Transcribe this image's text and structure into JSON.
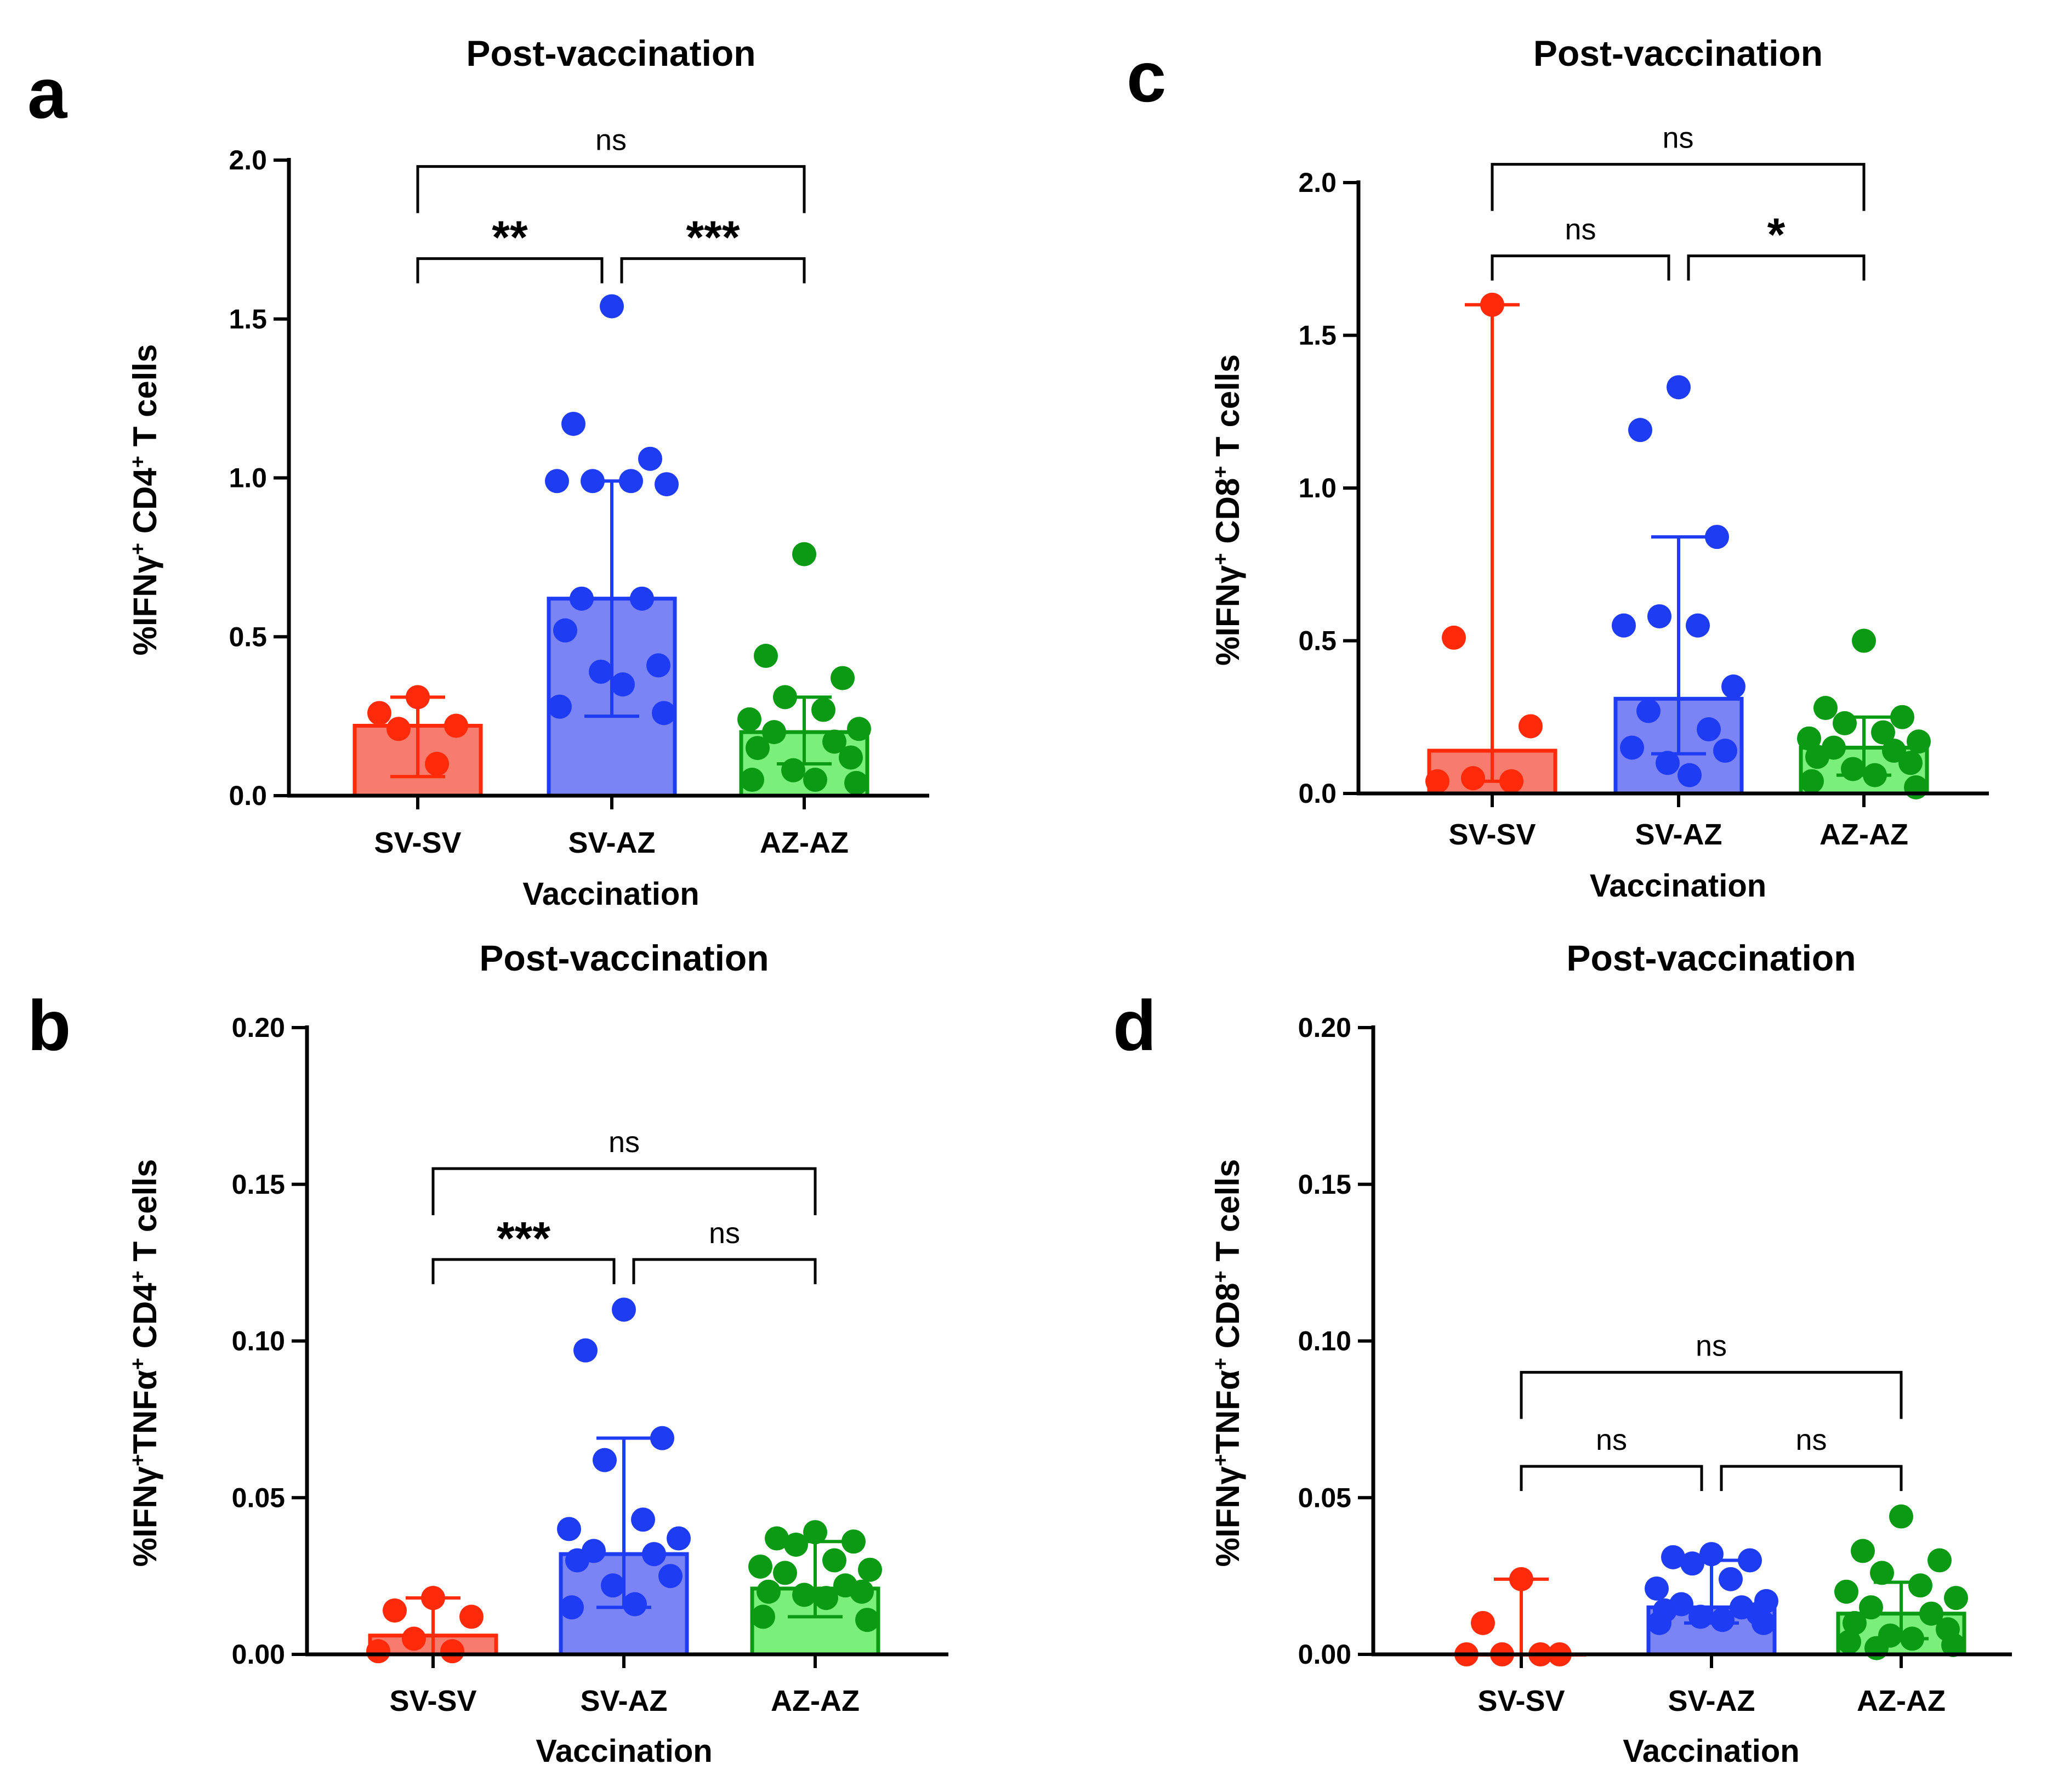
{
  "chart_data": [
    {
      "panel": "a",
      "type": "bar",
      "title": "Post-vaccination",
      "xlabel": "Vaccination",
      "ylabel_parts": [
        "%IFNγ",
        "+",
        " CD4",
        "+",
        " T cells"
      ],
      "ylim": [
        0,
        2.0
      ],
      "yticks": [
        0.0,
        0.5,
        1.0,
        1.5,
        2.0
      ],
      "ytick_labels": [
        "0.0",
        "0.5",
        "1.0",
        "1.5",
        "2.0"
      ],
      "categories": [
        "SV-SV",
        "SV-AZ",
        "AZ-AZ"
      ],
      "colors": [
        {
          "fill": "#f87c6d",
          "edge": "#ff2a0a",
          "dot": "#ff2a0a"
        },
        {
          "fill": "#7a84f5",
          "edge": "#1f3cf5",
          "dot": "#1f3cf5"
        },
        {
          "fill": "#7af07a",
          "edge": "#0a9a14",
          "dot": "#0a9a14"
        }
      ],
      "bars": [
        0.22,
        0.62,
        0.2
      ],
      "error_bars": [
        [
          0.06,
          0.31
        ],
        [
          0.25,
          0.99
        ],
        [
          0.1,
          0.31
        ]
      ],
      "points": [
        [
          0.31,
          0.26,
          0.22,
          0.21,
          0.1
        ],
        [
          1.54,
          1.17,
          1.06,
          0.99,
          0.99,
          0.99,
          0.98,
          0.62,
          0.62,
          0.52,
          0.41,
          0.39,
          0.35,
          0.28,
          0.26
        ],
        [
          0.76,
          0.44,
          0.37,
          0.31,
          0.27,
          0.24,
          0.21,
          0.2,
          0.17,
          0.15,
          0.12,
          0.08,
          0.05,
          0.05,
          0.04
        ]
      ],
      "comparisons": [
        {
          "from": 0,
          "to": 1,
          "label": "**",
          "level": 0.45,
          "y": 1.69
        },
        {
          "from": 1,
          "to": 2,
          "label": "***",
          "level": 0.45,
          "y": 1.69
        },
        {
          "from": 0,
          "to": 2,
          "label": "ns",
          "level": 0.9,
          "y": 1.98
        }
      ]
    },
    {
      "panel": "b",
      "type": "bar",
      "title": "Post-vaccination",
      "xlabel": "Vaccination",
      "ylabel_parts": [
        "%IFNγ",
        "+",
        "TNFα",
        "+",
        " CD4",
        "+",
        " T cells"
      ],
      "ylim": [
        0,
        0.2
      ],
      "yticks": [
        0.0,
        0.05,
        0.1,
        0.15,
        0.2
      ],
      "ytick_labels": [
        "0.00",
        "0.05",
        "0.10",
        "0.15",
        "0.20"
      ],
      "categories": [
        "SV-SV",
        "SV-AZ",
        "AZ-AZ"
      ],
      "colors": [
        {
          "fill": "#f87c6d",
          "edge": "#ff2a0a",
          "dot": "#ff2a0a"
        },
        {
          "fill": "#7a84f5",
          "edge": "#1f3cf5",
          "dot": "#1f3cf5"
        },
        {
          "fill": "#7af07a",
          "edge": "#0a9a14",
          "dot": "#0a9a14"
        }
      ],
      "bars": [
        0.006,
        0.032,
        0.021
      ],
      "error_bars": [
        [
          0.0,
          0.018
        ],
        [
          0.015,
          0.069
        ],
        [
          0.012,
          0.036
        ]
      ],
      "points": [
        [
          0.018,
          0.014,
          0.012,
          0.005,
          0.001,
          0.001
        ],
        [
          0.11,
          0.097,
          0.069,
          0.062,
          0.043,
          0.04,
          0.037,
          0.033,
          0.032,
          0.03,
          0.025,
          0.022,
          0.016,
          0.015
        ],
        [
          0.039,
          0.037,
          0.036,
          0.035,
          0.03,
          0.028,
          0.027,
          0.026,
          0.022,
          0.02,
          0.02,
          0.019,
          0.018,
          0.012,
          0.011
        ]
      ],
      "comparisons": [
        {
          "from": 0,
          "to": 1,
          "label": "***",
          "level": 0.45,
          "y": 0.126
        },
        {
          "from": 1,
          "to": 2,
          "label": "ns",
          "level": 0.45,
          "y": 0.126
        },
        {
          "from": 0,
          "to": 2,
          "label": "ns",
          "level": 0.9,
          "y": 0.155
        }
      ]
    },
    {
      "panel": "c",
      "type": "bar",
      "title": "Post-vaccination",
      "xlabel": "Vaccination",
      "ylabel_parts": [
        "%IFNγ",
        "+",
        " CD8",
        "+",
        " T cells"
      ],
      "ylim": [
        0,
        2.0
      ],
      "yticks": [
        0.0,
        0.5,
        1.0,
        1.5,
        2.0
      ],
      "ytick_labels": [
        "0.0",
        "0.5",
        "1.0",
        "1.5",
        "2.0"
      ],
      "categories": [
        "SV-SV",
        "SV-AZ",
        "AZ-AZ"
      ],
      "colors": [
        {
          "fill": "#f87c6d",
          "edge": "#ff2a0a",
          "dot": "#ff2a0a"
        },
        {
          "fill": "#7a84f5",
          "edge": "#1f3cf5",
          "dot": "#1f3cf5"
        },
        {
          "fill": "#7af07a",
          "edge": "#0a9a14",
          "dot": "#0a9a14"
        }
      ],
      "bars": [
        0.14,
        0.31,
        0.15
      ],
      "error_bars": [
        [
          0.04,
          1.6
        ],
        [
          0.13,
          0.84
        ],
        [
          0.06,
          0.25
        ]
      ],
      "points": [
        [
          1.6,
          0.51,
          0.22,
          0.05,
          0.04,
          0.04
        ],
        [
          1.33,
          1.19,
          0.84,
          0.58,
          0.55,
          0.55,
          0.35,
          0.27,
          0.21,
          0.15,
          0.14,
          0.1,
          0.06
        ],
        [
          0.5,
          0.28,
          0.25,
          0.23,
          0.2,
          0.18,
          0.17,
          0.15,
          0.14,
          0.12,
          0.1,
          0.08,
          0.06,
          0.04,
          0.02
        ]
      ],
      "comparisons": [
        {
          "from": 0,
          "to": 1,
          "label": "ns",
          "level": 0.45,
          "y": 1.76
        },
        {
          "from": 1,
          "to": 2,
          "label": "*",
          "level": 0.45,
          "y": 1.76
        },
        {
          "from": 0,
          "to": 2,
          "label": "ns",
          "level": 0.9,
          "y": 2.06
        }
      ]
    },
    {
      "panel": "d",
      "type": "bar",
      "title": "Post-vaccination",
      "xlabel": "Vaccination",
      "ylabel_parts": [
        "%IFNγ",
        "+",
        "TNFα",
        "+",
        " CD8",
        "+",
        " T cells"
      ],
      "ylim": [
        0,
        0.2
      ],
      "yticks": [
        0.0,
        0.05,
        0.1,
        0.15,
        0.2
      ],
      "ytick_labels": [
        "0.00",
        "0.05",
        "0.10",
        "0.15",
        "0.20"
      ],
      "categories": [
        "SV-SV",
        "SV-AZ",
        "AZ-AZ"
      ],
      "colors": [
        {
          "fill": "#f87c6d",
          "edge": "#ff2a0a",
          "dot": "#ff2a0a"
        },
        {
          "fill": "#7a84f5",
          "edge": "#1f3cf5",
          "dot": "#1f3cf5"
        },
        {
          "fill": "#7af07a",
          "edge": "#0a9a14",
          "dot": "#0a9a14"
        }
      ],
      "bars": [
        0.0,
        0.015,
        0.013
      ],
      "error_bars": [
        [
          0.0,
          0.024
        ],
        [
          0.01,
          0.03
        ],
        [
          0.005,
          0.023
        ]
      ],
      "points": [
        [
          0.024,
          0.01,
          0.0,
          0.0,
          0.0,
          0.0
        ],
        [
          0.032,
          0.031,
          0.03,
          0.029,
          0.024,
          0.021,
          0.017,
          0.016,
          0.015,
          0.014,
          0.013,
          0.012,
          0.011,
          0.01,
          0.01
        ],
        [
          0.044,
          0.033,
          0.03,
          0.026,
          0.022,
          0.02,
          0.018,
          0.015,
          0.013,
          0.01,
          0.008,
          0.006,
          0.005,
          0.004,
          0.003,
          0.002
        ]
      ],
      "comparisons": [
        {
          "from": 0,
          "to": 1,
          "label": "ns",
          "level": 0.45,
          "y": 0.06
        },
        {
          "from": 1,
          "to": 2,
          "label": "ns",
          "level": 0.45,
          "y": 0.06
        },
        {
          "from": 0,
          "to": 2,
          "label": "ns",
          "level": 0.9,
          "y": 0.09
        }
      ]
    }
  ]
}
